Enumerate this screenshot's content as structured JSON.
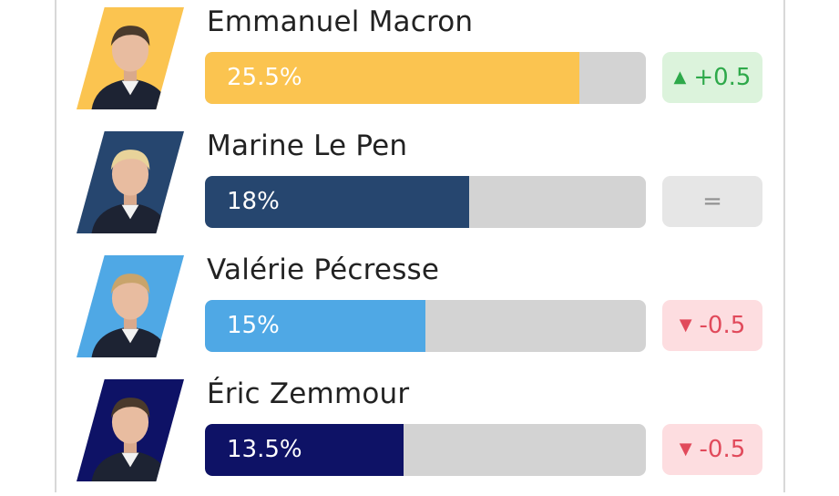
{
  "chart_data": {
    "type": "bar",
    "orientation": "horizontal",
    "title": "",
    "xlabel": "",
    "ylabel": "",
    "xlim": [
      0,
      30
    ],
    "categories": [
      "Emmanuel Macron",
      "Marine Le Pen",
      "Valérie Pécresse",
      "Éric Zemmour"
    ],
    "values": [
      25.5,
      18,
      15,
      13.5
    ],
    "value_labels": [
      "25.5%",
      "18%",
      "15%",
      "13.5%"
    ],
    "changes": [
      {
        "text": "+0.5",
        "direction": "up"
      },
      {
        "text": "=",
        "direction": "same"
      },
      {
        "text": "-0.5",
        "direction": "down"
      },
      {
        "text": "-0.5",
        "direction": "down"
      }
    ],
    "bar_colors": [
      "#fbc450",
      "#26466f",
      "#4fa8e5",
      "#0e1266"
    ],
    "portrait_backgrounds": [
      "#fbc450",
      "#26466f",
      "#4fa8e5",
      "#0e1266"
    ],
    "change_colors": {
      "up": {
        "bg": "#dcf3dc",
        "fg": "#2ea94a"
      },
      "same": {
        "bg": "#e6e6e6",
        "fg": "#8f8f8f"
      },
      "down": {
        "bg": "#fddde0",
        "fg": "#e14a5b"
      }
    }
  }
}
